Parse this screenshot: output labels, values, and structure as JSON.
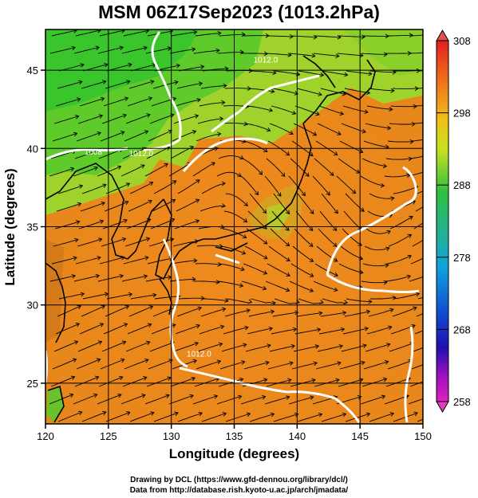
{
  "title": "MSM 06Z17Sep2023 (1013.2hPa)",
  "map": {
    "x_axis": {
      "label": "Longitude (degrees)",
      "range": [
        120,
        150
      ],
      "ticks": [
        120,
        125,
        130,
        135,
        140,
        145,
        150
      ]
    },
    "y_axis": {
      "label": "Latitude  (degrees)",
      "range": [
        22.4,
        47.6
      ],
      "ticks": [
        25,
        30,
        35,
        40,
        45
      ]
    },
    "grid": true,
    "contours": [
      {
        "label": "1008",
        "lon": 123.8,
        "lat": 39.6
      },
      {
        "label": "1012.0",
        "lon": 127.6,
        "lat": 39.5
      },
      {
        "label": "1012.0",
        "lon": 137.5,
        "lat": 45.5
      },
      {
        "label": "1012.0",
        "lon": 132.2,
        "lat": 26.7
      }
    ]
  },
  "colorbar": {
    "min": 258,
    "max": 308,
    "ticks": [
      "308",
      "298",
      "288",
      "278",
      "268",
      "258"
    ]
  },
  "credits": {
    "line1": "Drawing by DCL (https://www.gfd-dennou.org/library/dcl/)",
    "line2": "Data from http://database.rish.kyoto-u.ac.jp/arch/jmadata/"
  },
  "colors": {
    "warm": "#e88a1c",
    "green": "#3bcb2d",
    "contour": "#ffffff",
    "streamline": "#000000"
  }
}
